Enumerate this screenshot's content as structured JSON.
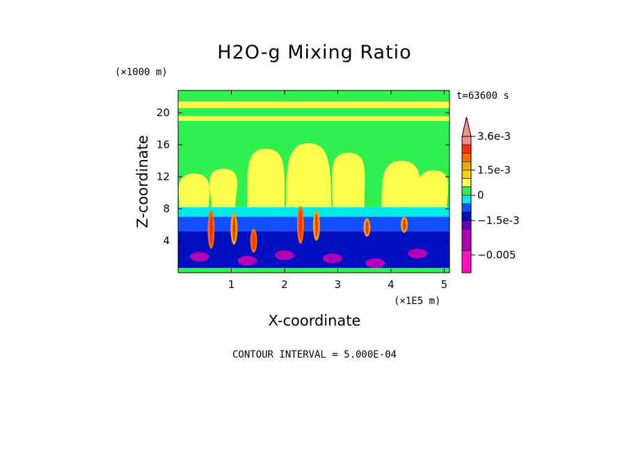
{
  "chart_data": {
    "type": "heatmap",
    "title": "H2O-g Mixing Ratio",
    "xlabel": "X-coordinate",
    "ylabel": "Z-coordinate",
    "x_unit": "(×1E5 m)",
    "y_unit": "(×1000 m)",
    "time_label": "t=63600 s",
    "footer": "CONTOUR INTERVAL = 5.000E-04",
    "xlim": [
      0,
      5.1
    ],
    "ylim": [
      0,
      22.8
    ],
    "x_ticks": [
      1,
      2,
      3,
      4,
      5
    ],
    "y_ticks": [
      4,
      8,
      12,
      16,
      20
    ],
    "x_tick_labels": [
      "1",
      "2",
      "3",
      "4",
      "5"
    ],
    "y_tick_labels": [
      "4",
      "8",
      "12",
      "16",
      "20"
    ],
    "colorbar": {
      "labels": [
        {
          "text": "3.6e-3",
          "value": 0.0036
        },
        {
          "text": "1.5e-3",
          "value": 0.0015
        },
        {
          "text": "0",
          "value": 0
        },
        {
          "text": "−1.5e-3",
          "value": -0.0015
        },
        {
          "text": "−0.005",
          "value": -0.005
        }
      ],
      "levels": [
        {
          "from": 0.003,
          "to": 0.0035,
          "color": "#f09088"
        },
        {
          "from": 0.0025,
          "to": 0.003,
          "color": "#ff3010"
        },
        {
          "from": 0.002,
          "to": 0.0025,
          "color": "#ff6a00"
        },
        {
          "from": 0.0015,
          "to": 0.002,
          "color": "#f0a800"
        },
        {
          "from": 0.001,
          "to": 0.0015,
          "color": "#f6d400"
        },
        {
          "from": 0.0005,
          "to": 0.001,
          "color": "#ffff50"
        },
        {
          "from": 0.0,
          "to": 0.0005,
          "color": "#30f050"
        },
        {
          "from": -0.0005,
          "to": 0.0,
          "color": "#00e8e8"
        },
        {
          "from": -0.001,
          "to": -0.0005,
          "color": "#1050ff"
        },
        {
          "from": -0.0015,
          "to": -0.001,
          "color": "#0010c0"
        },
        {
          "from": -0.003,
          "to": -0.0015,
          "color": "#6a00c0"
        },
        {
          "from": -0.005,
          "to": -0.003,
          "color": "#b000b8"
        },
        {
          "from": -0.007,
          "to": -0.005,
          "color": "#ff10c0"
        }
      ]
    },
    "field_layers": [
      {
        "z_from": 0.0,
        "z_to": 0.6,
        "value": 0.00025
      },
      {
        "z_from": 0.6,
        "z_to": 5.2,
        "value": -0.0013
      },
      {
        "z_from": 5.2,
        "z_to": 7.0,
        "value": -0.0007
      },
      {
        "z_from": 7.0,
        "z_to": 8.2,
        "value": -0.0002
      },
      {
        "z_from": 8.2,
        "z_to": 19.0,
        "value": 0.00025
      },
      {
        "z_from": 19.0,
        "z_to": 19.6,
        "value": 0.0007
      },
      {
        "z_from": 19.6,
        "z_to": 20.6,
        "value": 0.00025
      },
      {
        "z_from": 20.6,
        "z_to": 21.4,
        "value": 0.0007
      },
      {
        "z_from": 21.4,
        "z_to": 22.8,
        "value": 0.00025
      }
    ],
    "plumes": [
      {
        "x": 0.3,
        "z_top": 12.4,
        "width": 0.55,
        "value": 0.0007
      },
      {
        "x": 0.85,
        "z_top": 13.0,
        "width": 0.45,
        "value": 0.0007
      },
      {
        "x": 1.65,
        "z_top": 15.5,
        "width": 0.7,
        "value": 0.0007
      },
      {
        "x": 2.45,
        "z_top": 16.2,
        "width": 0.85,
        "value": 0.0007
      },
      {
        "x": 3.2,
        "z_top": 15.0,
        "width": 0.6,
        "value": 0.0007
      },
      {
        "x": 4.2,
        "z_top": 14.0,
        "width": 0.75,
        "value": 0.0007
      },
      {
        "x": 4.8,
        "z_top": 12.8,
        "width": 0.5,
        "value": 0.0007
      }
    ],
    "anomalies": [
      {
        "x": 0.62,
        "z_from": 3.0,
        "z_to": 7.8,
        "value": 0.0022
      },
      {
        "x": 1.05,
        "z_from": 3.5,
        "z_to": 7.5,
        "value": 0.0017
      },
      {
        "x": 1.42,
        "z_from": 2.5,
        "z_to": 5.5,
        "value": 0.0022
      },
      {
        "x": 2.3,
        "z_from": 3.6,
        "z_to": 8.3,
        "value": 0.0022
      },
      {
        "x": 2.6,
        "z_from": 4.0,
        "z_to": 7.8,
        "value": 0.0017
      },
      {
        "x": 3.55,
        "z_from": 4.5,
        "z_to": 6.8,
        "value": 0.0017
      },
      {
        "x": 4.25,
        "z_from": 5.0,
        "z_to": 7.0,
        "value": 0.0017
      }
    ],
    "low_pockets": [
      {
        "x": 0.4,
        "z": 2.0,
        "value": -0.0035
      },
      {
        "x": 1.3,
        "z": 1.5,
        "value": -0.0035
      },
      {
        "x": 2.0,
        "z": 2.2,
        "value": -0.0035
      },
      {
        "x": 2.9,
        "z": 1.8,
        "value": -0.0035
      },
      {
        "x": 3.7,
        "z": 1.2,
        "value": -0.0035
      },
      {
        "x": 4.5,
        "z": 2.4,
        "value": -0.0035
      }
    ]
  }
}
